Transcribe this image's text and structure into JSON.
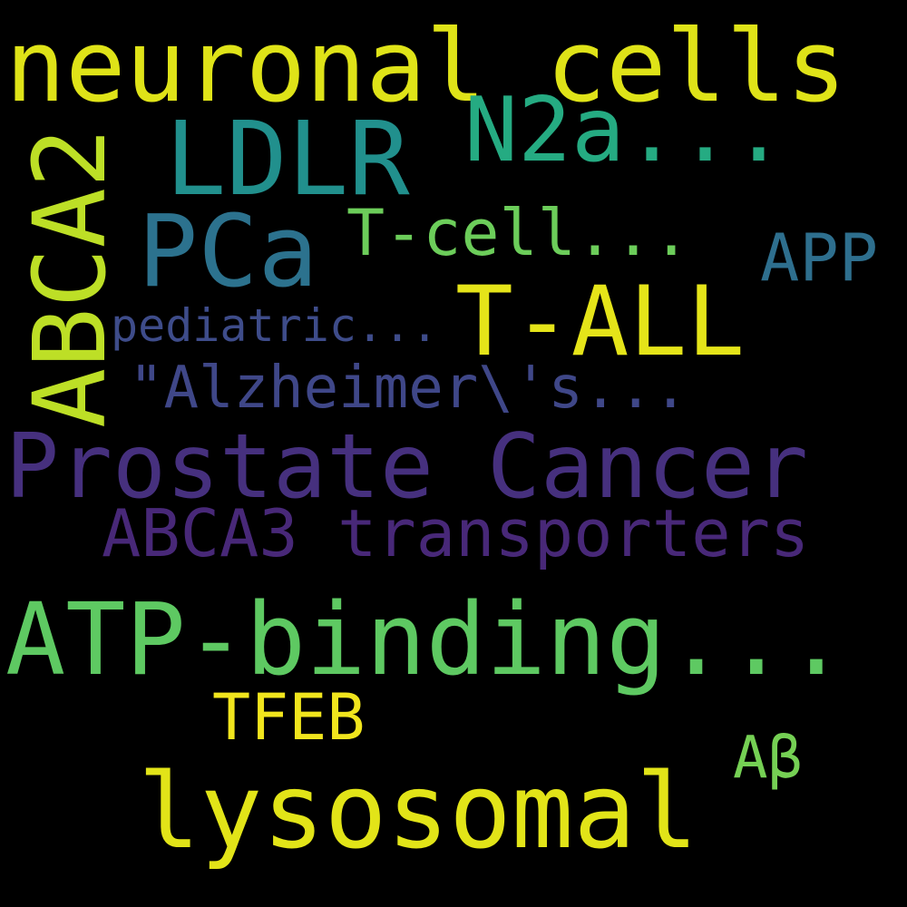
{
  "words": [
    {
      "id": "neuronal",
      "text": "neuronal cells",
      "color": "#dfe318"
    },
    {
      "id": "ldlr",
      "text": "LDLR",
      "color": "#21908d"
    },
    {
      "id": "n2a",
      "text": "N2a...",
      "color": "#25ab82"
    },
    {
      "id": "abca2",
      "text": "ABCA2",
      "color": "#bddf26"
    },
    {
      "id": "pca",
      "text": "PCa",
      "color": "#2c728e"
    },
    {
      "id": "tcell",
      "text": "T-cell...",
      "color": "#6ccd5a"
    },
    {
      "id": "app",
      "text": "APP",
      "color": "#2e6f8e"
    },
    {
      "id": "tall",
      "text": "T-ALL",
      "color": "#e5e419"
    },
    {
      "id": "pediatric",
      "text": "pediatric...",
      "color": "#3e4c8a"
    },
    {
      "id": "alz",
      "text": "\"Alzheimer\\'s...",
      "color": "#3f4788"
    },
    {
      "id": "prostate",
      "text": "Prostate Cancer",
      "color": "#46307e"
    },
    {
      "id": "abca3",
      "text": "ABCA3 transporters",
      "color": "#482878"
    },
    {
      "id": "atp",
      "text": "ATP-binding...",
      "color": "#5ec962"
    },
    {
      "id": "tfeb",
      "text": "TFEB",
      "color": "#f1e51d"
    },
    {
      "id": "abeta",
      "text": "Aβ",
      "color": "#75d054"
    },
    {
      "id": "lysosomal",
      "text": "lysosomal",
      "color": "#e2e418"
    }
  ]
}
